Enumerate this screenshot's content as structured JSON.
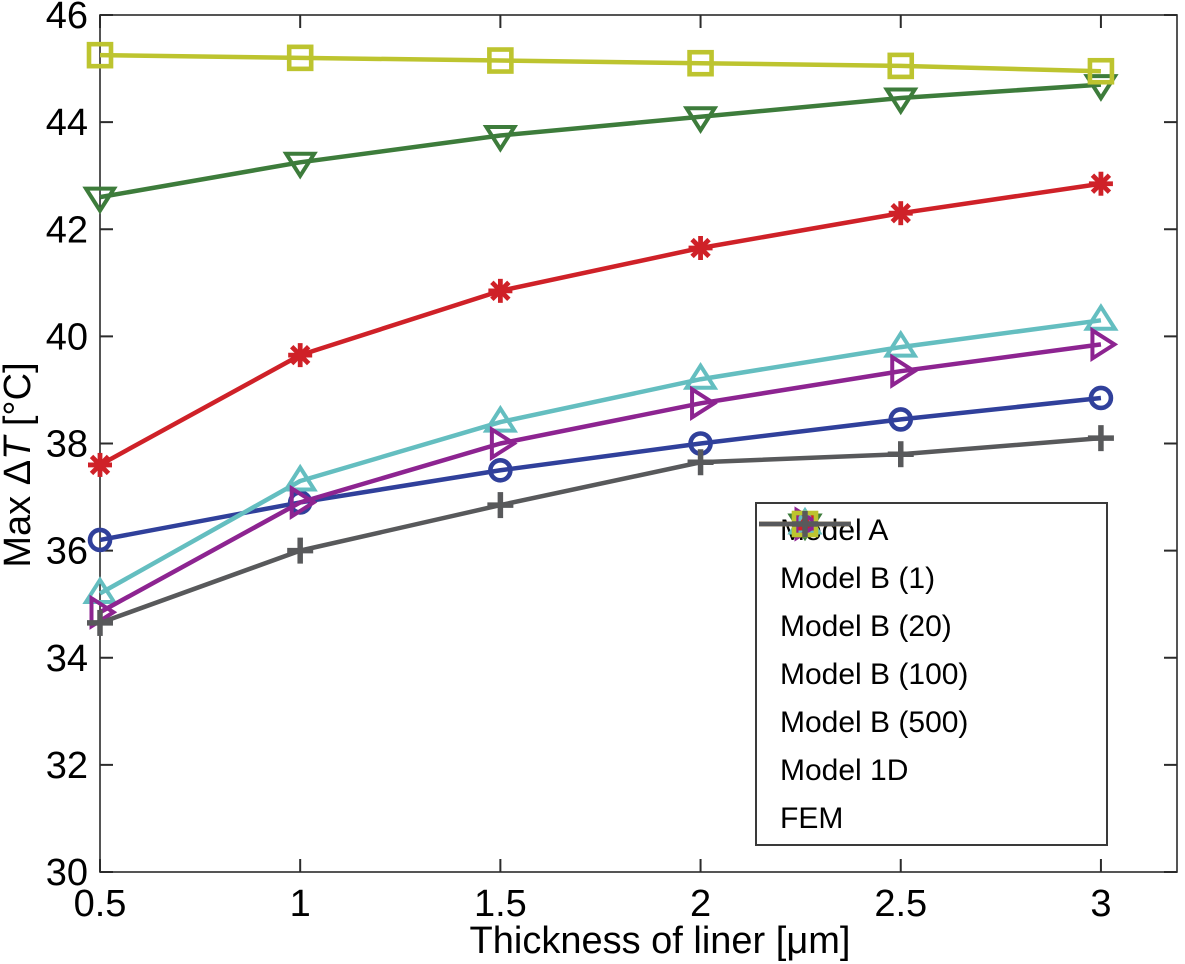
{
  "figure": {
    "background": "#ffffff"
  },
  "chart_data": {
    "type": "line",
    "x": [
      0.5,
      1,
      1.5,
      2,
      2.5,
      3
    ],
    "x_tick_labels": [
      "0.5",
      "1",
      "1.5",
      "2",
      "2.5",
      "3"
    ],
    "y_ticks": [
      46,
      44,
      42,
      40,
      38,
      36,
      34,
      32,
      30
    ],
    "xlim": [
      0.5,
      3.19
    ],
    "ylim": [
      30,
      46
    ],
    "xlabel": "Thickness of liner [μm]",
    "ylabel": "Max ΔT [°C]",
    "ylabel_parts": {
      "prefix": "Max Δ",
      "italic": "T",
      "suffix": " [°C]"
    },
    "grid": false,
    "legend_position": "inside lower right",
    "axis_color": "#2b2b2b",
    "text_color": "#000000",
    "series": [
      {
        "name": "Model A",
        "color": "#30409b",
        "marker": "circle",
        "values": [
          36.2,
          36.9,
          37.5,
          38.0,
          38.45,
          38.85
        ]
      },
      {
        "name": "Model B (1)",
        "color": "#3d7c3b",
        "marker": "triangle-down",
        "values": [
          42.6,
          43.25,
          43.75,
          44.1,
          44.45,
          44.7
        ]
      },
      {
        "name": "Model B (20)",
        "color": "#cf2128",
        "marker": "asterisk",
        "values": [
          37.6,
          39.65,
          40.85,
          41.65,
          42.3,
          42.85
        ]
      },
      {
        "name": "Model B (100)",
        "color": "#64bec0",
        "marker": "triangle-up",
        "values": [
          35.2,
          37.3,
          38.4,
          39.2,
          39.8,
          40.3
        ]
      },
      {
        "name": "Model B (500)",
        "color": "#8d2491",
        "marker": "triangle-right",
        "values": [
          34.85,
          36.9,
          38.0,
          38.75,
          39.35,
          39.85
        ]
      },
      {
        "name": "Model 1D",
        "color": "#bdc42f",
        "marker": "square",
        "values": [
          45.25,
          45.2,
          45.15,
          45.1,
          45.05,
          44.95
        ]
      },
      {
        "name": "FEM",
        "color": "#58595b",
        "marker": "plus",
        "values": [
          34.65,
          36.0,
          36.85,
          37.65,
          37.8,
          38.1
        ]
      }
    ]
  }
}
